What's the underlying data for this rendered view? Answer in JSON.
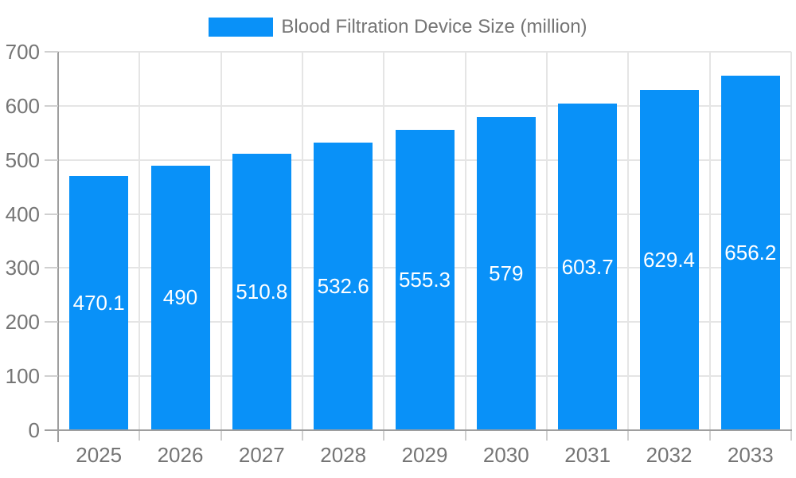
{
  "legend": {
    "label": "Blood Filtration Device Size (million)"
  },
  "chart_data": {
    "type": "bar",
    "title": "Blood Filtration Device Size (million)",
    "categories": [
      "2025",
      "2026",
      "2027",
      "2028",
      "2029",
      "2030",
      "2031",
      "2032",
      "2033"
    ],
    "values": [
      470.1,
      490,
      510.8,
      532.6,
      555.3,
      579,
      603.7,
      629.4,
      656.2
    ],
    "value_labels": [
      "470.1",
      "490",
      "510.8",
      "532.6",
      "555.3",
      "579",
      "603.7",
      "629.4",
      "656.2"
    ],
    "xlabel": "",
    "ylabel": "",
    "ylim": [
      0,
      700
    ],
    "ytick_step": 100,
    "yticks": [
      0,
      100,
      200,
      300,
      400,
      500,
      600,
      700
    ],
    "grid": true,
    "legend_position": "top-center",
    "value_label_position": "center-of-bar",
    "colors": {
      "bar": "#0991f8",
      "value_label": "#ffffff",
      "axis_text": "#757575",
      "grid_line": "#e5e5e5",
      "axis_line": "#9e9e9e",
      "tick": "#d0d0d0",
      "background": "#ffffff"
    }
  }
}
